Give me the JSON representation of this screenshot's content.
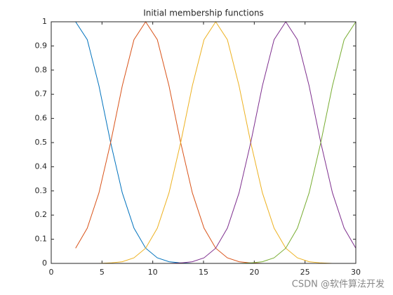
{
  "chart_data": {
    "type": "line",
    "title": "Initial membership functions",
    "x": [
      2.4,
      3.55,
      4.7,
      5.85,
      7,
      8.15,
      9.3,
      10.45,
      11.6,
      12.75,
      13.9,
      15.05,
      16.2,
      17.35,
      18.5,
      19.65,
      20.8,
      21.95,
      23.1,
      24.25,
      25.4,
      26.55,
      27.7,
      28.85,
      30
    ],
    "series": [
      {
        "color": "#0072BD",
        "values": [
          1,
          0.926,
          0.735,
          0.5,
          0.292,
          0.146,
          0.063,
          0.023,
          0.007,
          0.002,
          0,
          0,
          0,
          0,
          0,
          0,
          0,
          0,
          0,
          0,
          0,
          0,
          0,
          0,
          0
        ]
      },
      {
        "color": "#D95319",
        "values": [
          0.063,
          0.146,
          0.292,
          0.5,
          0.735,
          0.926,
          1,
          0.926,
          0.735,
          0.5,
          0.292,
          0.146,
          0.063,
          0.023,
          0.007,
          0.002,
          0,
          0,
          0,
          0,
          0,
          0,
          0,
          0,
          0
        ]
      },
      {
        "color": "#EDB120",
        "values": [
          0,
          0,
          0,
          0.002,
          0.007,
          0.023,
          0.063,
          0.146,
          0.292,
          0.5,
          0.735,
          0.926,
          1,
          0.926,
          0.735,
          0.5,
          0.292,
          0.146,
          0.063,
          0.023,
          0.007,
          0.002,
          0,
          0,
          0
        ]
      },
      {
        "color": "#7E2F8E",
        "values": [
          0,
          0,
          0,
          0,
          0,
          0,
          0,
          0,
          0,
          0.002,
          0.007,
          0.023,
          0.063,
          0.146,
          0.292,
          0.5,
          0.735,
          0.926,
          1,
          0.926,
          0.735,
          0.5,
          0.292,
          0.146,
          0.063
        ]
      },
      {
        "color": "#77AC30",
        "values": [
          0,
          0,
          0,
          0,
          0,
          0,
          0,
          0,
          0,
          0,
          0,
          0,
          0,
          0,
          0,
          0.002,
          0.007,
          0.023,
          0.063,
          0.146,
          0.292,
          0.5,
          0.735,
          0.926,
          1
        ]
      }
    ],
    "xlim": [
      0,
      30
    ],
    "xticks": [
      0,
      5,
      10,
      15,
      20,
      25,
      30
    ],
    "ylim": [
      0,
      1
    ],
    "yticks": [
      0,
      0.1,
      0.2,
      0.3,
      0.4,
      0.5,
      0.6,
      0.7,
      0.8,
      0.9,
      1
    ]
  },
  "watermark": "CSDN @软件算法开发"
}
